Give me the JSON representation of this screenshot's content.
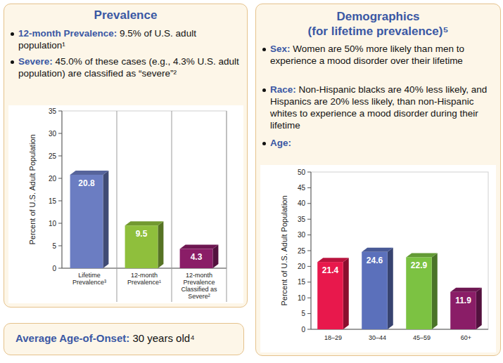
{
  "chart_data": [
    {
      "type": "bar",
      "y_label": "Percent of U.S. Adult Population",
      "categories": [
        "Lifetime Prevalence³",
        "12-month Prevalence¹",
        "12-month Prevalence Classified as Severe²"
      ],
      "values": [
        20.8,
        9.5,
        4.3
      ],
      "colors": [
        "#6b7dc2",
        "#8fbf3c",
        "#8a1d67"
      ],
      "ylim": [
        0,
        35
      ],
      "yticks": [
        0,
        5,
        10,
        15,
        20,
        25,
        30,
        35
      ],
      "grid": false,
      "data_labels": true
    },
    {
      "type": "bar",
      "y_label": "Percent of U.S. Adult Population",
      "categories": [
        "18–29",
        "30–44",
        "45–59",
        "60+"
      ],
      "values": [
        21.4,
        24.6,
        22.9,
        11.9
      ],
      "colors": [
        "#e8184c",
        "#5b70bb",
        "#7cc242",
        "#8a1d67"
      ],
      "ylim": [
        0,
        50
      ],
      "yticks": [
        0,
        5,
        10,
        15,
        20,
        25,
        30,
        35,
        40,
        45,
        50
      ],
      "grid": false,
      "data_labels": true
    }
  ],
  "prevalence": {
    "title": "Prevalence",
    "bullets": [
      {
        "label": "12-month Prevalence:",
        "text": "9.5% of U.S. adult population¹"
      },
      {
        "label": "Severe:",
        "text": "45.0% of these cases (e.g., 4.3% U.S. adult population) are classified as “severe”²"
      }
    ]
  },
  "onset": {
    "label": "Average Age-of-Onset:",
    "text": "30 years old⁴"
  },
  "demographics": {
    "title_lines": [
      "Demographics",
      "(for lifetime prevalence)⁵"
    ],
    "bullets": [
      {
        "label": "Sex:",
        "text": "Women are 50% more likely than men to experience a mood disorder over their lifetime"
      },
      {
        "label": "Race:",
        "text": "Non-Hispanic blacks are 40% less likely, and Hispanics are 20% less likely, than non-Hispanic whites to experience a mood disorder during their lifetime"
      },
      {
        "label": "Age:"
      }
    ]
  }
}
